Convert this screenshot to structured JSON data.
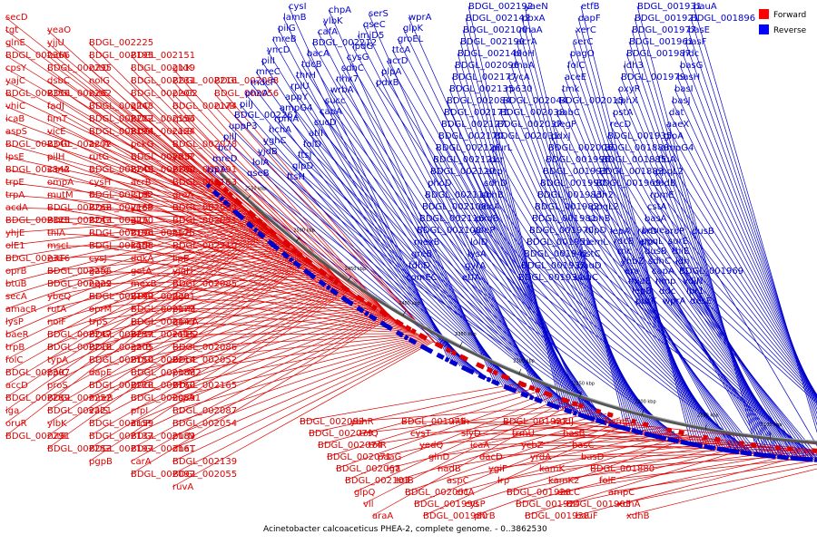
{
  "caption": "Acinetobacter calcoaceticus PHEA-2, complete genome. - 0..3862530",
  "legend": [
    {
      "label": "Forward",
      "color": "#ff0000"
    },
    {
      "label": "Reverse",
      "color": "#0000ff"
    }
  ],
  "colors": {
    "forward": "#dd0000",
    "reverse": "#0000cc",
    "backbone": "#555555"
  },
  "scale_labels": [
    "2550 kbp",
    "2500 kbp",
    "2450 kbp",
    "2400 kbp",
    "2350 kbp",
    "2300 kbp",
    "2250 kbp",
    "2200 kbp",
    "2150 kbp",
    "2100 kbp",
    "2050 kbp",
    "2000 kbp"
  ],
  "genes_left_red": [
    "secD",
    "tgt",
    "glnE",
    "BDGL_002366",
    "cpsY",
    "yajC",
    "BDGL_002356",
    "vhiC",
    "icaB",
    "aspS",
    "BDGL_002340",
    "lpsE",
    "BDGL_002342",
    "trpE",
    "trpA",
    "acdA",
    "BDGL_002325",
    "yhjE",
    "olE1",
    "BDGL_002316",
    "oprB",
    "btuB",
    "secA",
    "amacR",
    "lysP",
    "baeR",
    "trpB",
    "folC",
    "BDGL_002307",
    "accD",
    "BDGL_002289",
    "iga",
    "oruR",
    "BDGL_002291",
    "yeaO",
    "yjjU",
    "fadA",
    "BDGL_002295",
    "dsbC",
    "BDGL_002262",
    "fadJ",
    "fimT",
    "vicE",
    "BDGL_002272",
    "pilH",
    "sanA",
    "ompA",
    "mutM",
    "BDGL_002268",
    "BDGL_002243",
    "thlA",
    "mscL",
    "rutF",
    "BDGL_002256",
    "BDGL_002229",
    "ybeQ",
    "rutA",
    "nolF",
    "BDGL_002247",
    "BDGL_002218",
    "typA",
    "ppiC",
    "proS",
    "BDGL_002252",
    "BDGL_002221",
    "ylbK",
    "rutB",
    "BDGL_002253",
    "BDGL_002225",
    "BDGL_002195",
    "rutD",
    "nolG",
    "rutE",
    "BDGL_002248",
    "BDGL_002222",
    "BDGL_002194",
    "acrA",
    "rutG",
    "BDGL_002249",
    "cysH",
    "BDGL_002182",
    "BDGL_002169",
    "BDGL_002250",
    "BDGL_002196",
    "BDGL_002158",
    "cysJ",
    "gatC",
    "nqo2",
    "BDGL_002199",
    "oprM",
    "trpS",
    "BDGL_002257",
    "BDGL_002205",
    "BDGL_002150",
    "dapE",
    "BDGL_002228",
    "mreB",
    "valS",
    "BDGL_002159",
    "BDGL_002137",
    "BDGL_002197",
    "pgpB",
    "BDGL_002151",
    "BDGL_002119",
    "BDGL_002231",
    "BDGL_002206",
    "gltC",
    "BDGL_002156",
    "BDGL_002124",
    "pckG",
    "BDGL_002232",
    "BDGL_002200",
    "acrB",
    "ispB",
    "yeeF",
    "gltA",
    "BDGL_002125",
    "kgtP",
    "dgkA",
    "gatA",
    "mexB",
    "BDGL_002201",
    "BDGL_002173",
    "BDGL_002143",
    "BDGL_002115",
    "gatB",
    "BDGL_002214",
    "BDGL_002188",
    "BDGL_002160",
    "BDGL_002089",
    "pfpI",
    "aroP",
    "BDGL_002189",
    "BDGL_002161",
    "carA",
    "BDGL_002092",
    "glxK",
    "BDGL_002216",
    "plsC2",
    "BDGL_002174",
    "rpoD",
    "carB",
    "BDGL_002078",
    "yrhP",
    "BDGL_002191",
    "BDGL_002163",
    "greA",
    "BDGL_002083",
    "BDGL_002051",
    "htrB",
    "BDGL_002210",
    "lipB",
    "yjgH",
    "BDGL_002085",
    "dgt",
    "purM",
    "qmcA",
    "catB2",
    "BDGL_002086",
    "BDGL_002052",
    "purM2",
    "BDGL_002165",
    "uspA1",
    "BDGL_002087",
    "BDGL_002054",
    "purN",
    "dhaT",
    "BDGL_002139",
    "BDGL_002055",
    "ruvA",
    "BDGL_002088",
    "BDGL_002056",
    "ruvB"
  ],
  "genes_middle": [
    "cysI",
    "lamB",
    "pilG",
    "mreB",
    "yncD",
    "pilI",
    "mreC",
    "mdcF",
    "phnA",
    "pilJ",
    "BDGL_002261",
    "uppP3",
    "pilJ",
    "bcr",
    "mreD",
    "ispA",
    "chpA",
    "ylbK",
    "cafA",
    "BDGL_002212",
    "bacA",
    "tdcB",
    "thrH",
    "rplU",
    "appY",
    "ampG4",
    "rpmA",
    "hchA",
    "yghC",
    "yjdB",
    "lolA",
    "qseB",
    "serS",
    "qseC",
    "imjD5",
    "lpdG",
    "cysG",
    "sdhC",
    "nhx7",
    "wrbA",
    "succ",
    "capA",
    "sucD",
    "atlI",
    "folD",
    "ftsJ",
    "glpD",
    "ftsH",
    "wprA",
    "glpK",
    "groEL",
    "ttcA",
    "acrD",
    "plpA",
    "pdxB"
  ],
  "genes_middle_right": [
    "BDGL_002192",
    "BDGL_002142",
    "BDGL_002100",
    "BDGL_002190",
    "BDGL_002140",
    "BDGL_002096",
    "BDGL_002177",
    "BDGL_002135",
    "BDGL_002084",
    "BDGL_002171",
    "BDGL_002127",
    "BDGL_002170",
    "BDGL_002126",
    "BDGL_002121",
    "BDGL_002120",
    "phoD",
    "BDGL_002110",
    "BDGL_002109",
    "BDGL_002116",
    "BDGL_002108",
    "mexB",
    "greB",
    "fdhD",
    "comEC",
    "yaeN",
    "pbxA",
    "nhaA",
    "acrA",
    "bioH",
    "dnaA",
    "cycA",
    "rp630",
    "BDGL_002044",
    "BDGL_002038",
    "BDGL_002037",
    "BDGL_002031",
    "purL",
    "bcr",
    "acp",
    "sdhD",
    "sdhB",
    "sucA",
    "pxdB",
    "ydeP",
    "lolD",
    "lysA",
    "gyrA",
    "etfA",
    "etfB",
    "dapF",
    "xerC",
    "serC",
    "pagO",
    "folC",
    "aceE",
    "tmk",
    "BDGL_002015",
    "pabC",
    "degP",
    "pdxJ",
    "BDGL_002006",
    "BDGL_001996",
    "BDGL_001993",
    "BDGL_001990",
    "BDGL_001983",
    "BDGL_001982",
    "BDGL_001981",
    "BDGL_001970",
    "BDGL_001951",
    "BDGL_001941",
    "BDGL_001937",
    "BDGL_001934",
    "BDGL_001931",
    "BDGL_001921",
    "BDGL_001977",
    "BDGL_001961",
    "BDGL_001987",
    "idh3",
    "BDGL_001979",
    "oxyR",
    "sphX",
    "pstA",
    "recD",
    "BDGL_001935",
    "BDGL_001888",
    "BDGL_001885",
    "BDGL_001883",
    "BDGL_001969",
    "idh2",
    "ppqL2",
    "sohB",
    "nlpD",
    "hemL",
    "pstC",
    "bauD",
    "bauC",
    "bauA",
    "BDGL_001896",
    "basE",
    "basF",
    "hdc",
    "basG",
    "basH",
    "basI",
    "basJ",
    "dat",
    "aaeX",
    "gloA",
    "ampG4",
    "fluA",
    "ppqL2",
    "dadB",
    "rpmE",
    "cstA",
    "basA",
    "baue",
    "efp"
  ],
  "genes_bottom_red": [
    "BDGL_002093",
    "BDGL_002079",
    "BDGL_002074",
    "BDGL_002071",
    "BDGL_002067",
    "BDGL_002103",
    "glpQ",
    "vll",
    "araA",
    "ybhR",
    "tolQ",
    "tolR",
    "paaG",
    "iga",
    "tolB",
    "BDGL_002001",
    "BDGL_001998",
    "BDGL_001980",
    "BDGL_001975",
    "cysT",
    "yedQ",
    "glnD",
    "nadB",
    "aspC",
    "cicA",
    "cysP",
    "phrB",
    "ndh",
    "slyD",
    "icaA",
    "dacD",
    "ygiF",
    "lrp",
    "BDGL_001928",
    "BDGL_001924",
    "BDGL_001938",
    "BDGL_001927",
    "trmU",
    "ycbZ",
    "yrdA",
    "kamK",
    "kamK2",
    "dacC",
    "BDGL_001903",
    "bauF",
    "nudJ",
    "basB",
    "basC",
    "basD",
    "BDGL_001880",
    "folE",
    "ampC",
    "xdhA",
    "xdhB",
    "hemE"
  ],
  "genes_band_blue": [
    "lepA",
    "rdcB",
    "rnc",
    "yhbZ",
    "era",
    "miaE",
    "lepB",
    "purK",
    "rarD",
    "ppqL",
    "dusB",
    "sdhC",
    "capA",
    "hmp",
    "ddc",
    "wprA",
    "aroP",
    "surE",
    "thiE",
    "idh",
    "BDGL_001969",
    "vdjN",
    "lpr1",
    "desE",
    "dusB"
  ]
}
